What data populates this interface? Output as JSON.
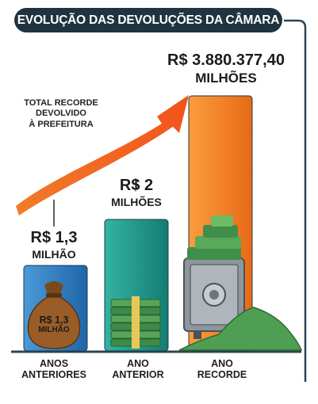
{
  "title": "EVOLUÇÃO DAS DEVOLUÇÕES DA CÂMARA",
  "annotation": [
    "TOTAL RECORDE",
    "DEVOLVIDO",
    "À PREFEITURA"
  ],
  "bag_label": [
    "R$ 1,3",
    "MILHÃO"
  ],
  "chart_data": {
    "type": "bar",
    "categories": [
      [
        "ANOS",
        "ANTERIORES"
      ],
      [
        "ANO",
        "ANTERIOR"
      ],
      [
        "ANO",
        "RECORDE"
      ]
    ],
    "values": [
      1.3,
      2,
      3.8803774
    ],
    "value_labels": [
      {
        "amount": "R$ 1,3",
        "unit": "MILHÃO"
      },
      {
        "amount": "R$ 2",
        "unit": "MILHÕES"
      },
      {
        "amount": "R$ 3.880.377,40",
        "unit": "MILHÕES"
      }
    ],
    "unit": "R$ milhões",
    "colors": [
      "#2f7fbf",
      "#1e9a8c",
      "#f07a22"
    ],
    "accent": "#f25c1f"
  }
}
